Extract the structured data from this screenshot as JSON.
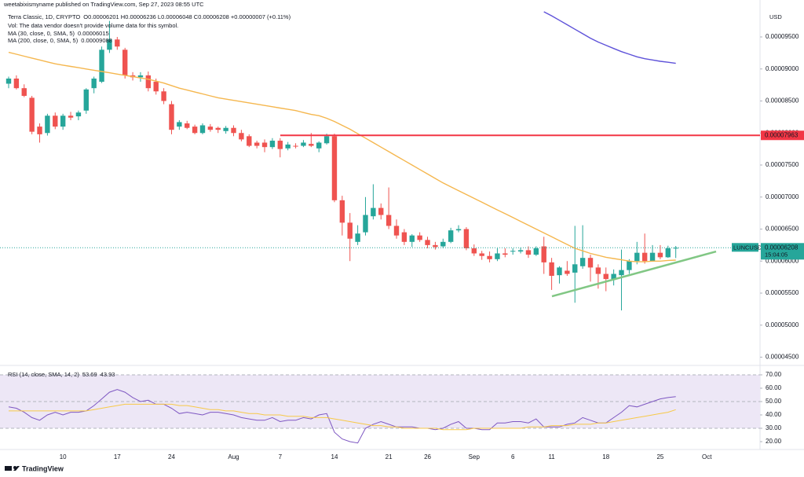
{
  "publisher": "weetabixismyname published on TradingView.com, Sep 27, 2023 08:55 UTC",
  "brand": "TradingView",
  "chart_data": [
    {
      "type": "candlestick",
      "title": "Terra Classic, 1D, CRYPTO",
      "ohlc": "O0.00006201 H0.00006236 L0.00006048 C0.00006208 +0.00000007 (+0.11%)",
      "annotation": "Vol: The data vendor doesn't provide volume data for this symbol.",
      "currency": "USD",
      "symbol": "LUNCUSD",
      "last_label": "0.00006208",
      "countdown": "15:04:05",
      "up_color": "#26a69a",
      "down_color": "#ef5350",
      "categories": [
        null,
        null,
        null,
        null,
        null,
        null,
        null,
        "10",
        null,
        null,
        null,
        null,
        null,
        null,
        "17",
        null,
        null,
        null,
        null,
        null,
        null,
        "24",
        null,
        null,
        null,
        null,
        null,
        null,
        null,
        "Aug",
        null,
        null,
        null,
        null,
        null,
        "7",
        null,
        null,
        null,
        null,
        null,
        null,
        "14",
        null,
        null,
        null,
        null,
        null,
        null,
        "21",
        null,
        null,
        null,
        null,
        "26",
        null,
        null,
        null,
        null,
        null,
        "Sep",
        null,
        null,
        null,
        null,
        "6",
        null,
        null,
        null,
        null,
        "11",
        null,
        null,
        null,
        null,
        null,
        null,
        "18",
        null,
        null,
        null,
        null,
        null,
        null,
        "25",
        null,
        null,
        null,
        null,
        null,
        "Oct"
      ],
      "open": [
        8.77e-05,
        8.85e-05,
        8.7e-05,
        8.55e-05,
        8.1e-05,
        8e-05,
        8.27e-05,
        8.1e-05,
        8.27e-05,
        8.26e-05,
        8.35e-05,
        8.7e-05,
        8.8e-05,
        9.3e-05,
        9.46e-05,
        9.3e-05,
        8.9e-05,
        8.87e-05,
        8.9e-05,
        8.8e-05,
        8.65e-05,
        8.45e-05,
        8.1e-05,
        8.15e-05,
        8.1e-05,
        8e-05,
        8.1e-05,
        8.08e-05,
        8.03e-05,
        8.08e-05,
        8e-05,
        7.95e-05,
        7.85e-05,
        7.85e-05,
        7.78e-05,
        7.88e-05,
        7.76e-05,
        7.8e-05,
        7.8e-05,
        7.83e-05,
        7.76e-05,
        7.84e-05,
        7.95e-05,
        6.95e-05,
        6.6e-05,
        6.3e-05,
        6.45e-05,
        6.7e-05,
        6.83e-05,
        6.72e-05,
        6.55e-05,
        6.45e-05,
        6.3e-05,
        6.4e-05,
        6.33e-05,
        6.25e-05,
        6.23e-05,
        6.3e-05,
        6.48e-05,
        6.5e-05,
        6.2e-05,
        6.12e-05,
        6.08e-05,
        6.03e-05,
        6.12e-05,
        6.15e-05,
        6.15e-05,
        6.17e-05,
        6.1e-05,
        6.23e-05,
        5.98e-05,
        5.78e-05,
        5.85e-05,
        5.82e-05,
        5.92e-05,
        6.05e-05,
        5.9e-05,
        5.8e-05,
        5.72e-05,
        5.78e-05,
        5.86e-05,
        6e-05,
        6.13e-05,
        6e-05,
        6.13e-05,
        6.06e-05,
        6.201e-05,
        null,
        null,
        null,
        null
      ],
      "high": [
        8.88e-05,
        8.9e-05,
        8.76e-05,
        8.58e-05,
        8.15e-05,
        8.3e-05,
        8.32e-05,
        8.3e-05,
        8.33e-05,
        8.35e-05,
        8.7e-05,
        8.88e-05,
        9.35e-05,
        9.75e-05,
        9.5e-05,
        9.33e-05,
        8.95e-05,
        8.95e-05,
        8.96e-05,
        8.85e-05,
        8.7e-05,
        8.5e-05,
        8.2e-05,
        8.19e-05,
        8.13e-05,
        8.15e-05,
        8.14e-05,
        8.1e-05,
        8.11e-05,
        8.12e-05,
        8.05e-05,
        7.98e-05,
        7.88e-05,
        7.9e-05,
        7.92e-05,
        7.92e-05,
        7.86e-05,
        7.84e-05,
        7.89e-05,
        8e-05,
        7.87e-05,
        7.99e-05,
        7.99e-05,
        7.02e-05,
        6.75e-05,
        6.56e-05,
        7e-05,
        7.2e-05,
        6.9e-05,
        7.15e-05,
        6.65e-05,
        6.5e-05,
        6.42e-05,
        6.45e-05,
        6.38e-05,
        6.3e-05,
        6.35e-05,
        6.52e-05,
        6.56e-05,
        6.53e-05,
        6.26e-05,
        6.16e-05,
        6.15e-05,
        6.2e-05,
        6.2e-05,
        6.2e-05,
        6.21e-05,
        6.23e-05,
        6.23e-05,
        6.38e-05,
        6.05e-05,
        5.92e-05,
        6e-05,
        6.55e-05,
        6.56e-05,
        6.1e-05,
        5.95e-05,
        5.9e-05,
        5.87e-05,
        6.18e-05,
        6.03e-05,
        6.3e-05,
        6.43e-05,
        6.25e-05,
        6.25e-05,
        6.24e-05,
        6.236e-05,
        null,
        null,
        null,
        null
      ],
      "low": [
        8.7e-05,
        8.68e-05,
        8.56e-05,
        7.98e-05,
        7.85e-05,
        7.96e-05,
        8.06e-05,
        8.05e-05,
        8.2e-05,
        8.2e-05,
        8.3e-05,
        8.62e-05,
        8.78e-05,
        9.25e-05,
        9.3e-05,
        8.85e-05,
        8.82e-05,
        8.8e-05,
        8.65e-05,
        8.6e-05,
        8.45e-05,
        7.98e-05,
        8.05e-05,
        8.06e-05,
        7.98e-05,
        7.98e-05,
        8.02e-05,
        8e-05,
        7.99e-05,
        7.95e-05,
        7.87e-05,
        7.78e-05,
        7.76e-05,
        7.7e-05,
        7.75e-05,
        7.62e-05,
        7.73e-05,
        7.76e-05,
        7.78e-05,
        7.78e-05,
        7.7e-05,
        7.82e-05,
        6.92e-05,
        6.4e-05,
        6e-05,
        6.25e-05,
        6.4e-05,
        6.65e-05,
        6.65e-05,
        6.5e-05,
        6.35e-05,
        6.25e-05,
        6.22e-05,
        6.3e-05,
        6.2e-05,
        6.18e-05,
        6.2e-05,
        6.28e-05,
        6.45e-05,
        6.17e-05,
        6.08e-05,
        6.02e-05,
        5.98e-05,
        6e-05,
        6.06e-05,
        6.1e-05,
        6.12e-05,
        6.05e-05,
        6.08e-05,
        5.8e-05,
        5.55e-05,
        5.65e-05,
        5.77e-05,
        5.35e-05,
        5.88e-05,
        5.68e-05,
        5.57e-05,
        5.53e-05,
        5.62e-05,
        5.23e-05,
        5.8e-05,
        5.95e-05,
        5.96e-05,
        5.99e-05,
        6.03e-05,
        6.05e-05,
        6.048e-05,
        null,
        null,
        null,
        null
      ],
      "close": [
        8.85e-05,
        8.7e-05,
        8.58e-05,
        8.02e-05,
        7.98e-05,
        8.27e-05,
        8.1e-05,
        8.27e-05,
        8.24e-05,
        8.32e-05,
        8.68e-05,
        8.85e-05,
        9.3e-05,
        9.46e-05,
        9.35e-05,
        8.9e-05,
        8.87e-05,
        8.9e-05,
        8.7e-05,
        8.65e-05,
        8.5e-05,
        8.05e-05,
        8.17e-05,
        8.08e-05,
        8e-05,
        8.12e-05,
        8.05e-05,
        8.05e-05,
        8.08e-05,
        8e-05,
        7.9e-05,
        7.8e-05,
        7.8e-05,
        7.78e-05,
        7.88e-05,
        7.75e-05,
        7.82e-05,
        7.79e-05,
        7.85e-05,
        7.8e-05,
        7.85e-05,
        7.95e-05,
        6.95e-05,
        6.6e-05,
        6.35e-05,
        6.43e-05,
        6.72e-05,
        6.83e-05,
        6.72e-05,
        6.55e-05,
        6.4e-05,
        6.3e-05,
        6.4e-05,
        6.33e-05,
        6.25e-05,
        6.22e-05,
        6.3e-05,
        6.48e-05,
        6.5e-05,
        6.2e-05,
        6.12e-05,
        6.08e-05,
        6.03e-05,
        6.12e-05,
        6.1e-05,
        6.16e-05,
        6.17e-05,
        6.1e-05,
        6.2e-05,
        5.98e-05,
        5.77e-05,
        5.9e-05,
        5.8e-05,
        5.95e-05,
        6.05e-05,
        5.9e-05,
        5.8e-05,
        5.72e-05,
        5.8e-05,
        5.86e-05,
        6e-05,
        6.13e-05,
        6e-05,
        6.13e-05,
        6.06e-05,
        6.2e-05,
        6.208e-05,
        null,
        null,
        null,
        null
      ],
      "series": [
        {
          "name": "MA (30, close, 0, SMA, 5)",
          "last_label": "0.00006015",
          "color": "#f5b74f",
          "values": [
            9.26e-05,
            9.23e-05,
            9.2e-05,
            9.17e-05,
            9.14e-05,
            9.11e-05,
            9.08e-05,
            9.06e-05,
            9.04e-05,
            9.02e-05,
            9e-05,
            8.98e-05,
            8.96e-05,
            8.94e-05,
            8.92e-05,
            8.9e-05,
            8.88e-05,
            8.86e-05,
            8.84e-05,
            8.81e-05,
            8.78e-05,
            8.74e-05,
            8.7e-05,
            8.67e-05,
            8.64e-05,
            8.61e-05,
            8.58e-05,
            8.55e-05,
            8.53e-05,
            8.51e-05,
            8.49e-05,
            8.47e-05,
            8.45e-05,
            8.43e-05,
            8.41e-05,
            8.39e-05,
            8.37e-05,
            8.35e-05,
            8.32e-05,
            8.29e-05,
            8.27e-05,
            8.23e-05,
            8.18e-05,
            8.12e-05,
            8.06e-05,
            7.99e-05,
            7.92e-05,
            7.85e-05,
            7.78e-05,
            7.71e-05,
            7.64e-05,
            7.57e-05,
            7.5e-05,
            7.43e-05,
            7.36e-05,
            7.29e-05,
            7.22e-05,
            7.16e-05,
            7.1e-05,
            7.04e-05,
            6.98e-05,
            6.92e-05,
            6.86e-05,
            6.8e-05,
            6.74e-05,
            6.68e-05,
            6.62e-05,
            6.56e-05,
            6.5e-05,
            6.44e-05,
            6.38e-05,
            6.32e-05,
            6.26e-05,
            6.2e-05,
            6.16e-05,
            6.12e-05,
            6.09e-05,
            6.06e-05,
            6.04e-05,
            6.02e-05,
            6e-05,
            5.99e-05,
            5.99e-05,
            6e-05,
            6e-05,
            6.01e-05,
            6.015e-05,
            null,
            null,
            null,
            null
          ]
        },
        {
          "name": "MA (200, close, 0, SMA, 5)",
          "last_label": "0.00009088",
          "color": "#5e52d9",
          "values": [
            null,
            null,
            null,
            null,
            null,
            null,
            null,
            null,
            null,
            null,
            null,
            null,
            null,
            null,
            null,
            null,
            null,
            null,
            null,
            null,
            null,
            null,
            null,
            null,
            null,
            null,
            null,
            null,
            null,
            null,
            null,
            null,
            null,
            null,
            null,
            null,
            null,
            null,
            null,
            null,
            null,
            null,
            null,
            null,
            null,
            null,
            null,
            null,
            null,
            null,
            null,
            null,
            null,
            null,
            null,
            null,
            null,
            null,
            null,
            null,
            null,
            null,
            null,
            null,
            null,
            null,
            null,
            null,
            null,
            9.893e-05,
            9.83e-05,
            9.76e-05,
            9.69e-05,
            9.62e-05,
            9.55e-05,
            9.48e-05,
            9.42e-05,
            9.37e-05,
            9.32e-05,
            9.27e-05,
            9.23e-05,
            9.19e-05,
            9.16e-05,
            9.14e-05,
            9.12e-05,
            9.105e-05,
            9.088e-05,
            null,
            null,
            null,
            null
          ]
        }
      ],
      "hlines": [
        {
          "value": 7.963e-05,
          "label": "0.00007963",
          "color": "#f23645"
        }
      ],
      "trendline": {
        "color": "#81c784",
        "values": [
          5.45e-05,
          6.15e-05
        ]
      },
      "ylim": [
        4.408e-05,
        9.954e-05
      ],
      "yticks": [
        {
          "value": 4.5e-05,
          "label": "0.00004500"
        },
        {
          "value": 5e-05,
          "label": "0.00005000"
        },
        {
          "value": 5.5e-05,
          "label": "0.00005500"
        },
        {
          "value": 6e-05,
          "label": "0.00006000"
        },
        {
          "value": 6.5e-05,
          "label": "0.00006500"
        },
        {
          "value": 7e-05,
          "label": "0.00007000"
        },
        {
          "value": 7.5e-05,
          "label": "0.00007500"
        },
        {
          "value": 8e-05,
          "label": "0.00008000"
        },
        {
          "value": 8.5e-05,
          "label": "0.00008500"
        },
        {
          "value": 9e-05,
          "label": "0.00009000"
        },
        {
          "value": 9.5e-05,
          "label": "0.00009500"
        }
      ],
      "grid": false
    },
    {
      "type": "line",
      "title": "RSI (14, close, SMA, 14, 2)",
      "band": [
        30,
        70
      ],
      "band_color": "#ede7f6",
      "levels": [
        30,
        50,
        70
      ],
      "series": [
        {
          "last_label": "53.69",
          "color": "#7e57c2",
          "values": [
            46,
            45,
            42,
            38,
            36,
            40,
            42,
            40,
            42,
            42,
            43,
            47,
            52,
            57,
            59,
            57,
            53,
            50,
            51,
            48,
            48,
            45,
            41,
            42,
            41,
            40,
            42,
            42,
            41,
            40,
            38,
            37,
            36,
            36,
            38,
            35,
            36,
            36,
            38,
            37,
            40,
            41,
            27,
            22,
            20,
            19,
            30,
            33,
            35,
            33,
            31,
            31,
            31,
            30,
            30,
            29,
            30,
            33,
            35,
            30,
            30,
            29,
            29,
            34,
            34,
            35,
            35,
            34,
            37,
            31,
            31,
            31,
            33,
            34,
            38,
            36,
            34,
            34,
            38,
            42,
            47,
            46,
            48,
            50,
            52,
            53,
            53.69,
            null,
            null,
            null,
            null
          ]
        },
        {
          "last_label": "43.93",
          "color": "#f7c948",
          "values": [
            43,
            43,
            43,
            43,
            43,
            43,
            43,
            43,
            43,
            43,
            43,
            44,
            45,
            46,
            47,
            48,
            48,
            48,
            48,
            48,
            48,
            48,
            47,
            47,
            46,
            45,
            44,
            44,
            43,
            43,
            42,
            41,
            41,
            40,
            40,
            40,
            39,
            39,
            39,
            38,
            38,
            38,
            37,
            36,
            35,
            34,
            33,
            32,
            32,
            31,
            31,
            30,
            30,
            30,
            30,
            30,
            29,
            29,
            29,
            29,
            30,
            30,
            30,
            30,
            30,
            30,
            30,
            31,
            31,
            31,
            32,
            32,
            32,
            33,
            33,
            33,
            34,
            34,
            35,
            36,
            37,
            38,
            39,
            40,
            41,
            42,
            43.93,
            null,
            null,
            null,
            null
          ]
        }
      ],
      "ylim": [
        15.3,
        75.3
      ],
      "yticks": [
        {
          "value": 20,
          "label": "20.00"
        },
        {
          "value": 30,
          "label": "30.00"
        },
        {
          "value": 40,
          "label": "40.00"
        },
        {
          "value": 50,
          "label": "50.00"
        },
        {
          "value": 60,
          "label": "60.00"
        },
        {
          "value": 70,
          "label": "70.00"
        }
      ],
      "grid": false
    }
  ]
}
